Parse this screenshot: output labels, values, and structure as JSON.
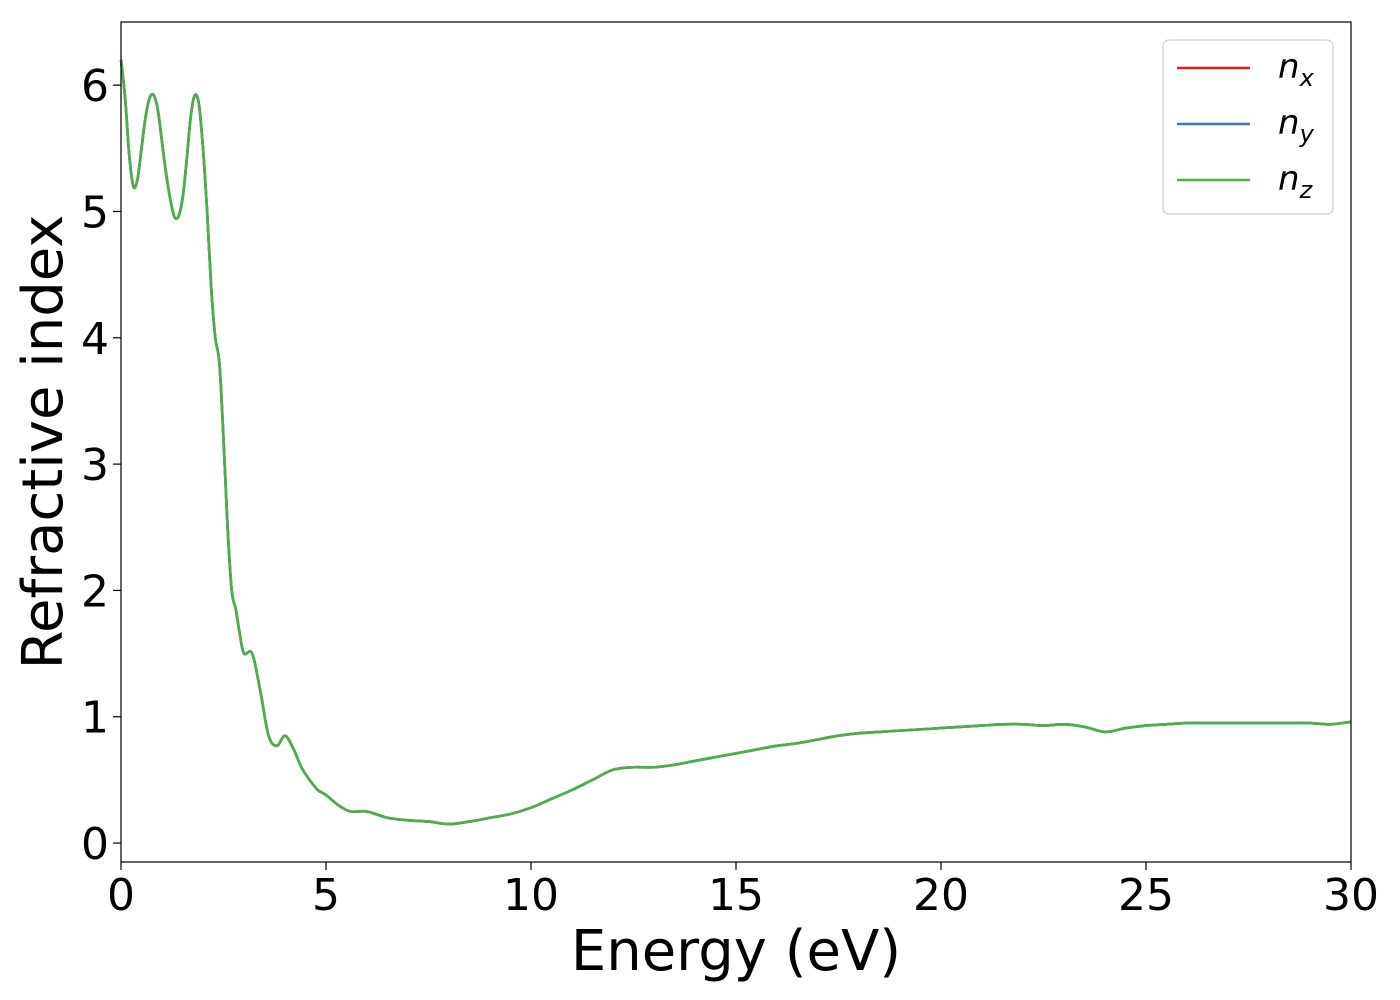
{
  "chart_data": {
    "type": "line",
    "title": "",
    "xlabel": "Energy (eV)",
    "ylabel": "Refractive index",
    "xlim": [
      0,
      30
    ],
    "ylim": [
      -0.15,
      6.5
    ],
    "xticks": [
      0,
      5,
      10,
      15,
      20,
      25,
      30
    ],
    "yticks": [
      0,
      1,
      2,
      3,
      4,
      5,
      6
    ],
    "grid": false,
    "legend_position": "top-right",
    "series": [
      {
        "name": "n",
        "subscript": "x",
        "color": "#e41a1c",
        "x": [
          0,
          0.1,
          0.2,
          0.3,
          0.4,
          0.5,
          0.6,
          0.7,
          0.8,
          0.9,
          1.0,
          1.1,
          1.2,
          1.3,
          1.4,
          1.5,
          1.6,
          1.7,
          1.8,
          1.9,
          2.0,
          2.1,
          2.2,
          2.3,
          2.4,
          2.5,
          2.6,
          2.7,
          2.8,
          2.9,
          3.0,
          3.2,
          3.4,
          3.6,
          3.8,
          4.0,
          4.2,
          4.4,
          4.6,
          4.8,
          5.0,
          5.3,
          5.6,
          6.0,
          6.5,
          7.0,
          7.5,
          8.0,
          8.5,
          9.0,
          9.5,
          10.0,
          10.5,
          11.0,
          11.5,
          12.0,
          12.5,
          13.0,
          13.5,
          14.0,
          14.5,
          15.0,
          15.5,
          16.0,
          16.5,
          17.0,
          17.5,
          18.0,
          18.5,
          19.0,
          19.5,
          20.0,
          20.5,
          21.0,
          21.5,
          22.0,
          22.5,
          23.0,
          23.5,
          24.0,
          24.5,
          25.0,
          25.5,
          26.0,
          26.5,
          27.0,
          27.5,
          28.0,
          28.5,
          29.0,
          29.5,
          30.0
        ],
        "y": [
          6.2,
          5.9,
          5.45,
          5.2,
          5.25,
          5.5,
          5.75,
          5.9,
          5.92,
          5.8,
          5.55,
          5.3,
          5.1,
          4.96,
          4.96,
          5.1,
          5.4,
          5.75,
          5.92,
          5.85,
          5.5,
          5.0,
          4.4,
          4.0,
          3.8,
          3.2,
          2.5,
          2.0,
          1.85,
          1.65,
          1.5,
          1.5,
          1.2,
          0.85,
          0.77,
          0.85,
          0.75,
          0.6,
          0.5,
          0.42,
          0.38,
          0.3,
          0.25,
          0.25,
          0.2,
          0.18,
          0.17,
          0.15,
          0.17,
          0.2,
          0.23,
          0.28,
          0.35,
          0.42,
          0.5,
          0.58,
          0.6,
          0.6,
          0.62,
          0.65,
          0.68,
          0.71,
          0.74,
          0.77,
          0.79,
          0.82,
          0.85,
          0.87,
          0.88,
          0.89,
          0.9,
          0.91,
          0.92,
          0.93,
          0.94,
          0.94,
          0.93,
          0.94,
          0.92,
          0.88,
          0.91,
          0.93,
          0.94,
          0.95,
          0.95,
          0.95,
          0.95,
          0.95,
          0.95,
          0.95,
          0.94,
          0.96
        ]
      },
      {
        "name": "n",
        "subscript": "y",
        "color": "#377eb8",
        "x": [
          0,
          0.1,
          0.2,
          0.3,
          0.4,
          0.5,
          0.6,
          0.7,
          0.8,
          0.9,
          1.0,
          1.1,
          1.2,
          1.3,
          1.4,
          1.5,
          1.6,
          1.7,
          1.8,
          1.9,
          2.0,
          2.1,
          2.2,
          2.3,
          2.4,
          2.5,
          2.6,
          2.7,
          2.8,
          2.9,
          3.0,
          3.2,
          3.4,
          3.6,
          3.8,
          4.0,
          4.2,
          4.4,
          4.6,
          4.8,
          5.0,
          5.3,
          5.6,
          6.0,
          6.5,
          7.0,
          7.5,
          8.0,
          8.5,
          9.0,
          9.5,
          10.0,
          10.5,
          11.0,
          11.5,
          12.0,
          12.5,
          13.0,
          13.5,
          14.0,
          14.5,
          15.0,
          15.5,
          16.0,
          16.5,
          17.0,
          17.5,
          18.0,
          18.5,
          19.0,
          19.5,
          20.0,
          20.5,
          21.0,
          21.5,
          22.0,
          22.5,
          23.0,
          23.5,
          24.0,
          24.5,
          25.0,
          25.5,
          26.0,
          26.5,
          27.0,
          27.5,
          28.0,
          28.5,
          29.0,
          29.5,
          30.0
        ],
        "y": [
          6.2,
          5.9,
          5.45,
          5.2,
          5.25,
          5.5,
          5.75,
          5.9,
          5.92,
          5.8,
          5.55,
          5.3,
          5.1,
          4.96,
          4.96,
          5.1,
          5.4,
          5.75,
          5.92,
          5.85,
          5.5,
          5.0,
          4.4,
          4.0,
          3.8,
          3.2,
          2.5,
          2.0,
          1.85,
          1.65,
          1.5,
          1.5,
          1.2,
          0.85,
          0.77,
          0.85,
          0.75,
          0.6,
          0.5,
          0.42,
          0.38,
          0.3,
          0.25,
          0.25,
          0.2,
          0.18,
          0.17,
          0.15,
          0.17,
          0.2,
          0.23,
          0.28,
          0.35,
          0.42,
          0.5,
          0.58,
          0.6,
          0.6,
          0.62,
          0.65,
          0.68,
          0.71,
          0.74,
          0.77,
          0.79,
          0.82,
          0.85,
          0.87,
          0.88,
          0.89,
          0.9,
          0.91,
          0.92,
          0.93,
          0.94,
          0.94,
          0.93,
          0.94,
          0.92,
          0.88,
          0.91,
          0.93,
          0.94,
          0.95,
          0.95,
          0.95,
          0.95,
          0.95,
          0.95,
          0.95,
          0.94,
          0.96
        ]
      },
      {
        "name": "n",
        "subscript": "z",
        "color": "#4daf4a",
        "x": [
          0,
          0.1,
          0.2,
          0.3,
          0.4,
          0.5,
          0.6,
          0.7,
          0.8,
          0.9,
          1.0,
          1.1,
          1.2,
          1.3,
          1.4,
          1.5,
          1.6,
          1.7,
          1.8,
          1.9,
          2.0,
          2.1,
          2.2,
          2.3,
          2.4,
          2.5,
          2.6,
          2.7,
          2.8,
          2.9,
          3.0,
          3.2,
          3.4,
          3.6,
          3.8,
          4.0,
          4.2,
          4.4,
          4.6,
          4.8,
          5.0,
          5.3,
          5.6,
          6.0,
          6.5,
          7.0,
          7.5,
          8.0,
          8.5,
          9.0,
          9.5,
          10.0,
          10.5,
          11.0,
          11.5,
          12.0,
          12.5,
          13.0,
          13.5,
          14.0,
          14.5,
          15.0,
          15.5,
          16.0,
          16.5,
          17.0,
          17.5,
          18.0,
          18.5,
          19.0,
          19.5,
          20.0,
          20.5,
          21.0,
          21.5,
          22.0,
          22.5,
          23.0,
          23.5,
          24.0,
          24.5,
          25.0,
          25.5,
          26.0,
          26.5,
          27.0,
          27.5,
          28.0,
          28.5,
          29.0,
          29.5,
          30.0
        ],
        "y": [
          6.2,
          5.9,
          5.45,
          5.2,
          5.25,
          5.5,
          5.75,
          5.9,
          5.92,
          5.8,
          5.55,
          5.3,
          5.1,
          4.96,
          4.96,
          5.1,
          5.4,
          5.75,
          5.92,
          5.85,
          5.5,
          5.0,
          4.4,
          4.0,
          3.8,
          3.2,
          2.5,
          2.0,
          1.85,
          1.65,
          1.5,
          1.5,
          1.2,
          0.85,
          0.77,
          0.85,
          0.75,
          0.6,
          0.5,
          0.42,
          0.38,
          0.3,
          0.25,
          0.25,
          0.2,
          0.18,
          0.17,
          0.15,
          0.17,
          0.2,
          0.23,
          0.28,
          0.35,
          0.42,
          0.5,
          0.58,
          0.6,
          0.6,
          0.62,
          0.65,
          0.68,
          0.71,
          0.74,
          0.77,
          0.79,
          0.82,
          0.85,
          0.87,
          0.88,
          0.89,
          0.9,
          0.91,
          0.92,
          0.93,
          0.94,
          0.94,
          0.93,
          0.94,
          0.92,
          0.88,
          0.91,
          0.93,
          0.94,
          0.95,
          0.95,
          0.95,
          0.95,
          0.95,
          0.95,
          0.95,
          0.94,
          0.96
        ]
      }
    ]
  }
}
